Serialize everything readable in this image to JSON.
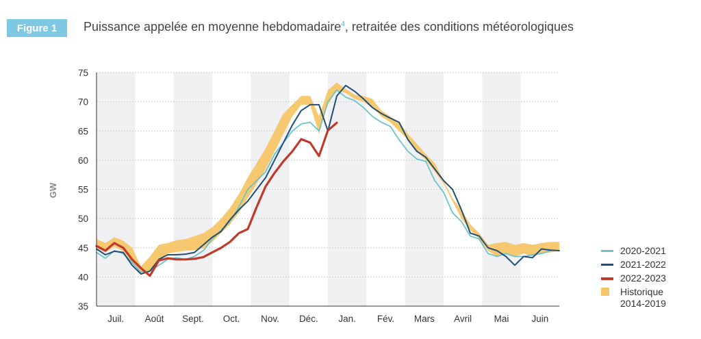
{
  "header": {
    "figure_label": "Figure 1",
    "title_main": "Puissance appelée en moyenne hebdomadaire",
    "title_sup": "4",
    "title_rest": ", retraitée des conditions météorologiques"
  },
  "colors": {
    "badge": "#7ec8e3",
    "series_2020_2021": "#6cc3c8",
    "series_2021_2022": "#1f4e79",
    "series_2022_2023": "#c0392b",
    "historique": "#f5c668",
    "month_band": "#f0eff1"
  },
  "chart_data": {
    "type": "line",
    "title": "Puissance appelée en moyenne hebdomadaire, retraitée des conditions météorologiques",
    "ylabel": "GW",
    "xlabel": "",
    "ylim": [
      35,
      75
    ],
    "yticks": [
      35,
      40,
      45,
      50,
      55,
      60,
      65,
      70,
      75
    ],
    "months": [
      "Juil.",
      "Août",
      "Sept.",
      "Oct.",
      "Nov.",
      "Déc.",
      "Janv.",
      "Févr.",
      "Mars",
      "Avril",
      "Mai",
      "Juin"
    ],
    "month_labels": [
      "Juil.",
      "Août",
      "Sept.",
      "Oct.",
      "Nov.",
      "Déc.",
      "Jan.",
      "Fév.",
      "Mars",
      "Avril",
      "Mai",
      "Juin"
    ],
    "x_unit": "week index (0 = first week of July)",
    "series": [
      {
        "name": "2020-2021",
        "values": [
          44.2,
          43.2,
          44.5,
          44.0,
          42.5,
          40.8,
          41.0,
          42.0,
          43.0,
          43.3,
          43.0,
          43.5,
          44.5,
          46.5,
          48.0,
          49.5,
          52.0,
          55.0,
          56.5,
          58.0,
          61.0,
          63.0,
          65.0,
          66.2,
          66.5,
          65.0,
          70.0,
          72.0,
          70.8,
          70.2,
          69.0,
          67.5,
          66.5,
          65.8,
          63.5,
          61.5,
          60.2,
          59.8,
          56.5,
          54.5,
          51.0,
          49.5,
          47.0,
          46.5,
          44.0,
          43.5,
          44.0,
          43.5,
          43.5,
          43.8,
          44.0,
          44.5
        ]
      },
      {
        "name": "2021-2022",
        "values": [
          44.8,
          43.8,
          44.4,
          44.2,
          42.0,
          40.5,
          41.0,
          43.0,
          43.8,
          43.8,
          43.9,
          44.2,
          45.5,
          46.8,
          47.8,
          49.8,
          51.5,
          53.0,
          55.0,
          57.0,
          60.0,
          63.0,
          66.0,
          68.5,
          69.5,
          69.5,
          65.0,
          71.0,
          72.8,
          71.8,
          70.5,
          69.0,
          68.0,
          67.2,
          66.5,
          63.5,
          61.5,
          60.5,
          58.5,
          56.5,
          55.0,
          51.5,
          47.5,
          47.0,
          45.0,
          44.5,
          43.5,
          42.0,
          43.5,
          43.3,
          44.8,
          44.6,
          44.5
        ]
      },
      {
        "name": "2022-2023",
        "values": [
          45.3,
          44.5,
          45.8,
          45.0,
          43.0,
          41.5,
          40.2,
          42.8,
          43.2,
          43.0,
          43.0,
          43.1,
          43.4,
          44.2,
          45.0,
          46.0,
          47.5,
          48.2,
          52.0,
          55.5,
          57.8,
          59.8,
          61.5,
          63.6,
          63.0,
          60.7,
          65.1,
          66.4
        ]
      },
      {
        "name": "Historique 2014-2019",
        "band": true,
        "lower": [
          45.0,
          44.2,
          45.2,
          44.4,
          42.5,
          40.8,
          41.0,
          42.8,
          44.0,
          44.3,
          44.5,
          44.6,
          44.9,
          46.0,
          47.5,
          49.0,
          51.0,
          53.5,
          56.0,
          58.5,
          61.5,
          64.5,
          67.5,
          69.5,
          69.5,
          64.5,
          69.5,
          72.0,
          71.5,
          70.5,
          70.0,
          69.0,
          67.5,
          66.5,
          65.0,
          63.5,
          61.5,
          60.0,
          58.0,
          56.0,
          53.0,
          50.0,
          48.0,
          46.5,
          44.5,
          43.5,
          44.0,
          43.5,
          44.0,
          43.5,
          44.0,
          44.2,
          44.5
        ],
        "upper": [
          46.5,
          45.8,
          46.8,
          46.2,
          45.0,
          41.8,
          43.5,
          45.5,
          45.8,
          46.3,
          46.5,
          47.0,
          47.5,
          48.5,
          50.0,
          51.8,
          54.2,
          57.0,
          59.5,
          62.0,
          65.0,
          68.0,
          69.5,
          71.0,
          71.0,
          67.5,
          72.0,
          73.3,
          72.2,
          71.2,
          71.0,
          70.5,
          68.5,
          67.5,
          66.5,
          64.5,
          62.8,
          61.0,
          59.5,
          56.5,
          53.5,
          51.5,
          49.0,
          47.5,
          45.5,
          45.8,
          46.0,
          45.5,
          45.8,
          45.5,
          45.8,
          46.0,
          46.0
        ]
      }
    ],
    "legend": [
      {
        "label": "2020-2021",
        "kind": "line"
      },
      {
        "label": "2021-2022",
        "kind": "line"
      },
      {
        "label": "2022-2023",
        "kind": "line-thick"
      },
      {
        "label": "Historique",
        "label2": "2014-2019",
        "kind": "box"
      }
    ],
    "legend_position": "right"
  }
}
